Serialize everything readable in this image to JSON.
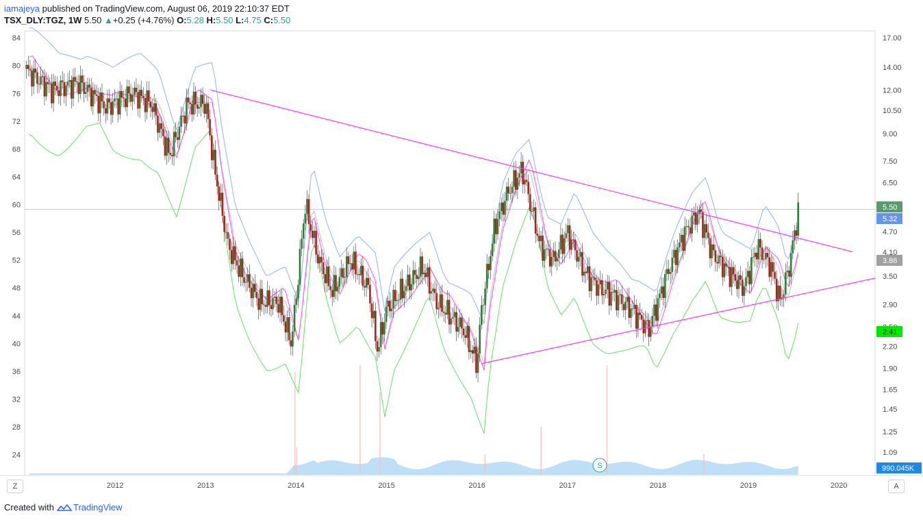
{
  "header": {
    "user": "iamajeya",
    "published": "published on TradingView.com, August 06, 2019 22:10:37 EDT",
    "symbol": "TSX_DLY:TGZ, 1W",
    "last": "5.50",
    "change": "+0.25 (+4.76%)",
    "o_label": "O:",
    "o": "5.28",
    "h_label": "H:",
    "h": "5.50",
    "l_label": "L:",
    "l": "4.75",
    "c_label": "C:",
    "c": "5.50"
  },
  "footer": {
    "created": "Created with",
    "brand": "TradingView"
  },
  "corners": {
    "left": "Z",
    "right": "A"
  },
  "session_badge": "S",
  "colors": {
    "up": "#26a69a",
    "down": "#ef5350",
    "candle_up": "#2e7d32",
    "candle_down": "#b71c1c",
    "bb_upper": "#8ab4f8",
    "bb_mid": "#c0c0c0",
    "bb_lower": "#66e066",
    "magenta": "#ff4dff",
    "trend": "#ff33ff",
    "volume": "#88c4ee"
  },
  "chart_data": {
    "type": "candlestick",
    "title": "TSX_DLY:TGZ, 1W",
    "x_ticks": [
      "2012",
      "2013",
      "2014",
      "2015",
      "2016",
      "2017",
      "2018",
      "2019",
      "2020"
    ],
    "x_range": [
      2011.0,
      2020.4
    ],
    "left_axis": {
      "ticks": [
        84,
        80,
        76,
        72,
        68,
        64,
        60,
        56,
        52,
        48,
        44,
        40,
        36,
        32,
        28,
        24
      ],
      "range": [
        21,
        85
      ]
    },
    "right_axis": {
      "scale": "log",
      "ticks": [
        "17.00",
        "14.00",
        "12.00",
        "10.50",
        "9.00",
        "7.50",
        "6.50",
        "4.70",
        "4.10",
        "3.50",
        "2.90",
        "2.50",
        "2.20",
        "1.90",
        "1.65",
        "1.45",
        "1.25",
        "1.09"
      ],
      "price_labels": [
        {
          "value": "5.50",
          "color": "#5a9a6e"
        },
        {
          "value": "5.32",
          "color": "#6495ed"
        },
        {
          "value": "3.86",
          "color": "#a0a0a0"
        },
        {
          "value": "2.41",
          "color": "#00e600"
        }
      ],
      "volume_label": {
        "value": "990.045K",
        "color": "#1e88e5"
      }
    },
    "series": [
      {
        "name": "Close",
        "x": [
          2011.0,
          2011.3,
          2011.6,
          2011.9,
          2012.2,
          2012.4,
          2012.6,
          2012.8,
          2013.0,
          2013.1,
          2013.25,
          2013.4,
          2013.6,
          2013.8,
          2013.95,
          2014.1,
          2014.25,
          2014.4,
          2014.6,
          2014.8,
          2014.9,
          2015.0,
          2015.2,
          2015.4,
          2015.55,
          2015.7,
          2015.85,
          2016.0,
          2016.05,
          2016.2,
          2016.35,
          2016.5,
          2016.7,
          2016.85,
          2017.0,
          2017.2,
          2017.35,
          2017.5,
          2017.7,
          2017.9,
          2018.1,
          2018.3,
          2018.45,
          2018.6,
          2018.8,
          2018.95,
          2019.1,
          2019.25,
          2019.35,
          2019.45,
          2019.55
        ],
        "y": [
          79.5,
          76.5,
          77.5,
          74,
          76,
          74.5,
          67,
          74.5,
          74.5,
          65,
          54,
          50,
          46,
          46,
          40,
          60,
          52,
          47.5,
          52,
          48,
          39,
          45,
          48,
          51,
          46,
          44,
          42,
          37,
          45,
          57,
          62,
          65,
          54,
          52,
          56,
          50,
          48,
          47,
          45,
          42,
          50,
          56,
          59,
          53,
          50,
          48,
          54,
          51,
          46,
          51,
          59
        ]
      }
    ],
    "trendlines": [
      {
        "name": "resistance",
        "from": [
          2013.05,
          76.5
        ],
        "to": [
          2020.15,
          53.2
        ]
      },
      {
        "name": "support",
        "from": [
          2016.05,
          37.1
        ],
        "to": [
          2020.4,
          49.4
        ]
      }
    ],
    "horizontal_line": 59.3,
    "grid": false,
    "legend": "none"
  }
}
